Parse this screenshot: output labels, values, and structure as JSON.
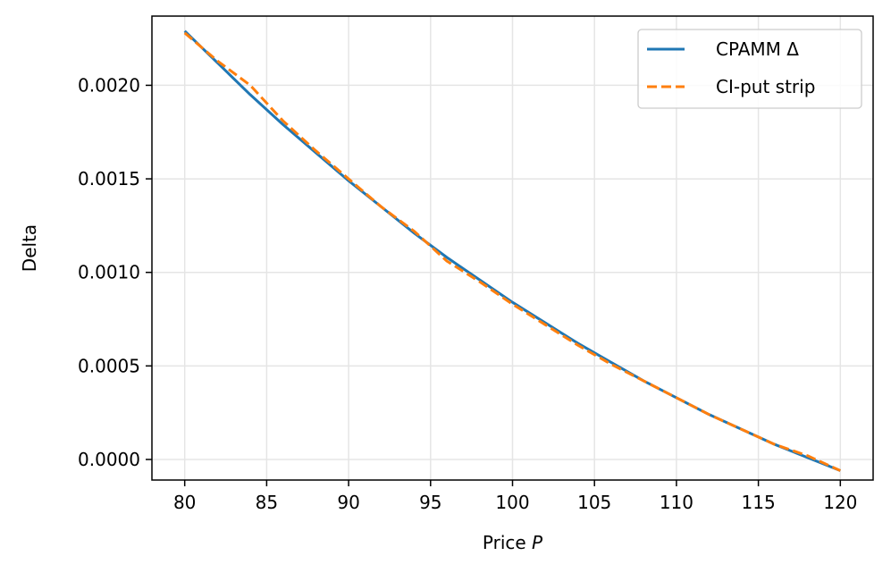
{
  "chart_data": {
    "type": "line",
    "xlabel": "Price",
    "xlabel_var": "P",
    "ylabel": "Delta",
    "xlim": [
      78,
      122
    ],
    "ylim": [
      -0.00011,
      0.00237
    ],
    "xticks": [
      80,
      85,
      90,
      95,
      100,
      105,
      110,
      115,
      120
    ],
    "xtick_labels": [
      "80",
      "85",
      "90",
      "95",
      "100",
      "105",
      "110",
      "115",
      "120"
    ],
    "yticks": [
      0.0,
      0.0005,
      0.001,
      0.0015,
      0.002
    ],
    "ytick_labels": [
      "0.0000",
      "0.0005",
      "0.0010",
      "0.0015",
      "0.0020"
    ],
    "grid": true,
    "legend_position": "top-right",
    "series": [
      {
        "name": "CPAMM Δ",
        "color": "#1f77b4",
        "style": "solid",
        "x": [
          80,
          82,
          84,
          86,
          88,
          90,
          92,
          94,
          96,
          98,
          100,
          102,
          104,
          106,
          108,
          110,
          112,
          114,
          116,
          118,
          120
        ],
        "y": [
          0.00229,
          0.00212,
          0.00195,
          0.00179,
          0.00164,
          0.00149,
          0.00135,
          0.00121,
          0.00108,
          0.00096,
          0.00084,
          0.00073,
          0.00062,
          0.00052,
          0.00042,
          0.00033,
          0.00024,
          0.00016,
          8e-05,
          1e-05,
          -6e-05
        ]
      },
      {
        "name": "CI-put strip",
        "color": "#ff7f0e",
        "style": "dashed",
        "x": [
          80,
          82,
          84,
          86,
          88,
          90,
          92,
          94,
          96,
          98,
          100,
          102,
          104,
          106,
          108,
          110,
          112,
          114,
          116,
          118,
          120
        ],
        "y": [
          0.00228,
          0.00213,
          0.002,
          0.00181,
          0.00165,
          0.0015,
          0.00135,
          0.00122,
          0.00106,
          0.00095,
          0.00083,
          0.00072,
          0.00061,
          0.00051,
          0.00042,
          0.00033,
          0.00024,
          0.00016,
          8e-05,
          2e-05,
          -6e-05
        ]
      }
    ]
  }
}
